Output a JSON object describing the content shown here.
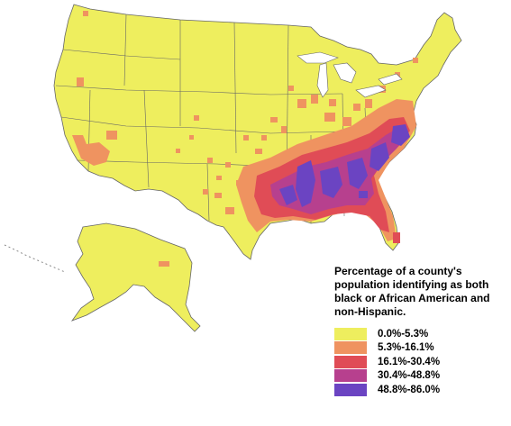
{
  "legend": {
    "title": "Percentage of a county's population identifying as both black or African American and non-Hispanic.",
    "entries": [
      {
        "label": "0.0%-5.3%",
        "color": "#eeee5e"
      },
      {
        "label": "5.3%-16.1%",
        "color": "#ef9360"
      },
      {
        "label": "16.1%-30.4%",
        "color": "#e04c56"
      },
      {
        "label": "30.4%-48.8%",
        "color": "#b7408e"
      },
      {
        "label": "48.8%-86.0%",
        "color": "#6b44c2"
      }
    ]
  },
  "colors": {
    "background": "#ffffff",
    "borders": "#777777",
    "state_borders": "#555555"
  }
}
